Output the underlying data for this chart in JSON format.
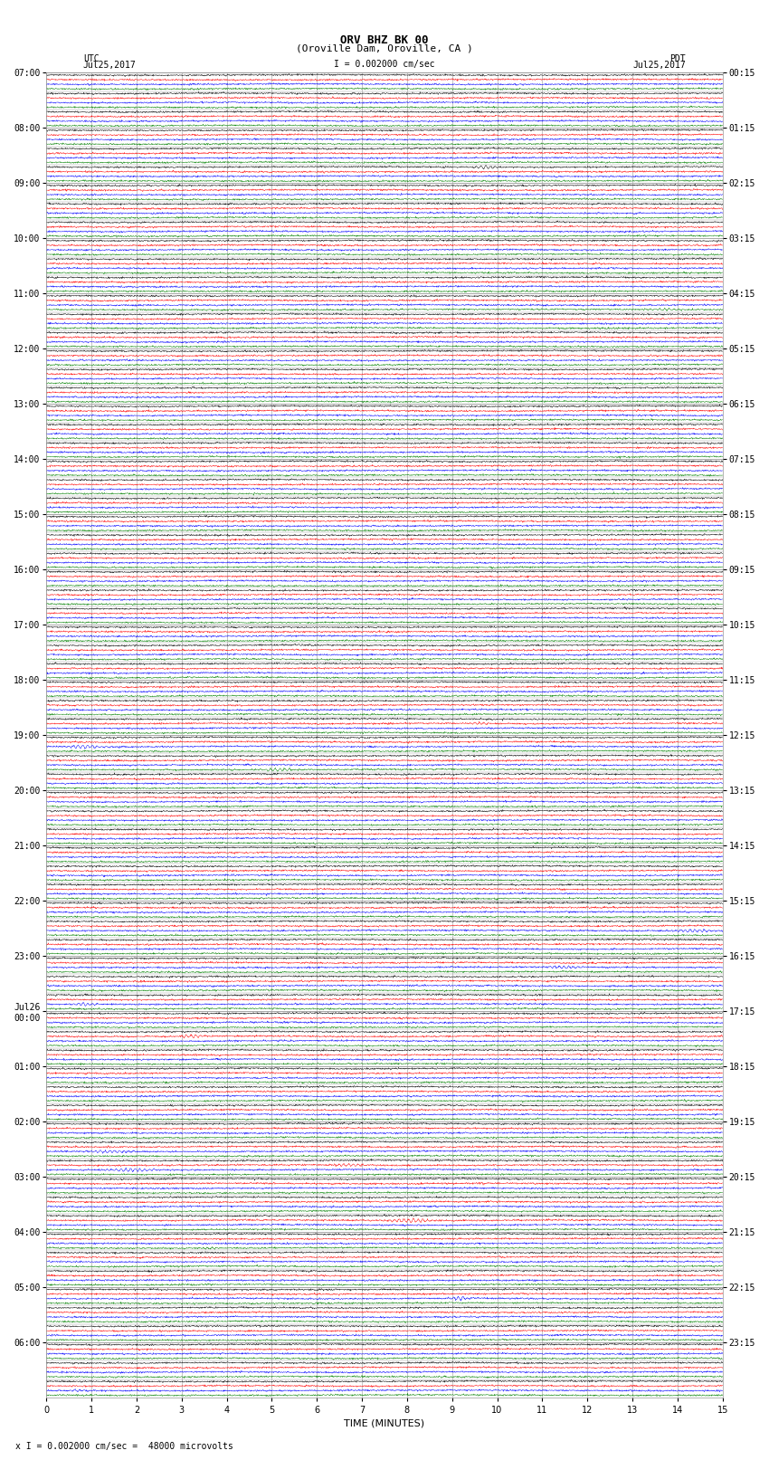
{
  "title_line1": "ORV BHZ BK 00",
  "title_line2": "(Oroville Dam, Oroville, CA )",
  "scale_text": "I = 0.002000 cm/sec",
  "bottom_note": "x I = 0.002000 cm/sec =  48000 microvolts",
  "xlabel": "TIME (MINUTES)",
  "utc_label": "UTC",
  "utc_date": "Jul25,2017",
  "pdt_label": "PDT",
  "pdt_date": "Jul25,2017",
  "xmin": 0,
  "xmax": 15,
  "colors": [
    "black",
    "red",
    "blue",
    "green"
  ],
  "background_color": "white",
  "grid_color": "#999999",
  "left_times_utc": [
    "07:00",
    "",
    "",
    "08:00",
    "",
    "",
    "09:00",
    "",
    "",
    "10:00",
    "",
    "",
    "11:00",
    "",
    "",
    "12:00",
    "",
    "",
    "13:00",
    "",
    "",
    "14:00",
    "",
    "",
    "15:00",
    "",
    "",
    "16:00",
    "",
    "",
    "17:00",
    "",
    "",
    "18:00",
    "",
    "",
    "19:00",
    "",
    "",
    "20:00",
    "",
    "",
    "21:00",
    "",
    "",
    "22:00",
    "",
    "",
    "23:00",
    "",
    "",
    "Jul26\n00:00",
    "",
    "",
    "01:00",
    "",
    "",
    "02:00",
    "",
    "",
    "03:00",
    "",
    "",
    "04:00",
    "",
    "",
    "05:00",
    "",
    "",
    "06:00",
    "",
    ""
  ],
  "right_times_pdt": [
    "00:15",
    "",
    "",
    "01:15",
    "",
    "",
    "02:15",
    "",
    "",
    "03:15",
    "",
    "",
    "04:15",
    "",
    "",
    "05:15",
    "",
    "",
    "06:15",
    "",
    "",
    "07:15",
    "",
    "",
    "08:15",
    "",
    "",
    "09:15",
    "",
    "",
    "10:15",
    "",
    "",
    "11:15",
    "",
    "",
    "12:15",
    "",
    "",
    "13:15",
    "",
    "",
    "14:15",
    "",
    "",
    "15:15",
    "",
    "",
    "16:15",
    "",
    "",
    "17:15",
    "",
    "",
    "18:15",
    "",
    "",
    "19:15",
    "",
    "",
    "20:15",
    "",
    "",
    "21:15",
    "",
    "",
    "22:15",
    "",
    "",
    "23:15",
    "",
    ""
  ]
}
